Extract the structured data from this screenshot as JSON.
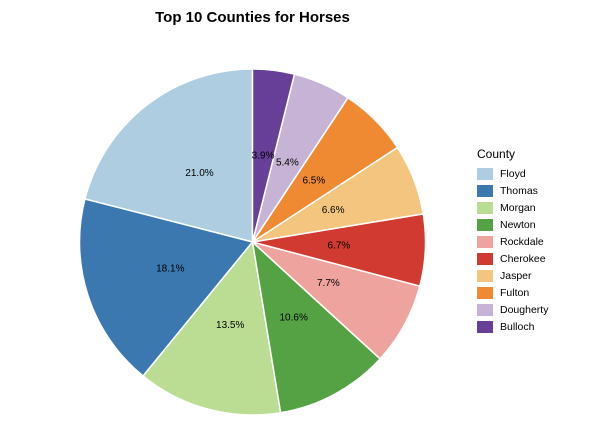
{
  "chart_data": {
    "type": "pie",
    "title": "Top 10 Counties for Horses",
    "legend_title": "County",
    "legend_position": "right",
    "slices": [
      {
        "label": "Floyd",
        "percent": 21.0,
        "percent_label": "21.0%",
        "color": "#aecde1"
      },
      {
        "label": "Thomas",
        "percent": 18.1,
        "percent_label": "18.1%",
        "color": "#3b78b0"
      },
      {
        "label": "Morgan",
        "percent": 13.5,
        "percent_label": "13.5%",
        "color": "#bbdd93"
      },
      {
        "label": "Newton",
        "percent": 10.6,
        "percent_label": "10.6%",
        "color": "#55a245"
      },
      {
        "label": "Rockdale",
        "percent": 7.7,
        "percent_label": "7.7%",
        "color": "#eea39f"
      },
      {
        "label": "Cherokee",
        "percent": 6.7,
        "percent_label": "6.7%",
        "color": "#d13a30"
      },
      {
        "label": "Jasper",
        "percent": 6.6,
        "percent_label": "6.6%",
        "color": "#f3c57f"
      },
      {
        "label": "Fulton",
        "percent": 6.5,
        "percent_label": "6.5%",
        "color": "#ef8a32"
      },
      {
        "label": "Dougherty",
        "percent": 5.4,
        "percent_label": "5.4%",
        "color": "#c6b3d6"
      },
      {
        "label": "Bulloch",
        "percent": 3.9,
        "percent_label": "3.9%",
        "color": "#673e98"
      }
    ]
  }
}
